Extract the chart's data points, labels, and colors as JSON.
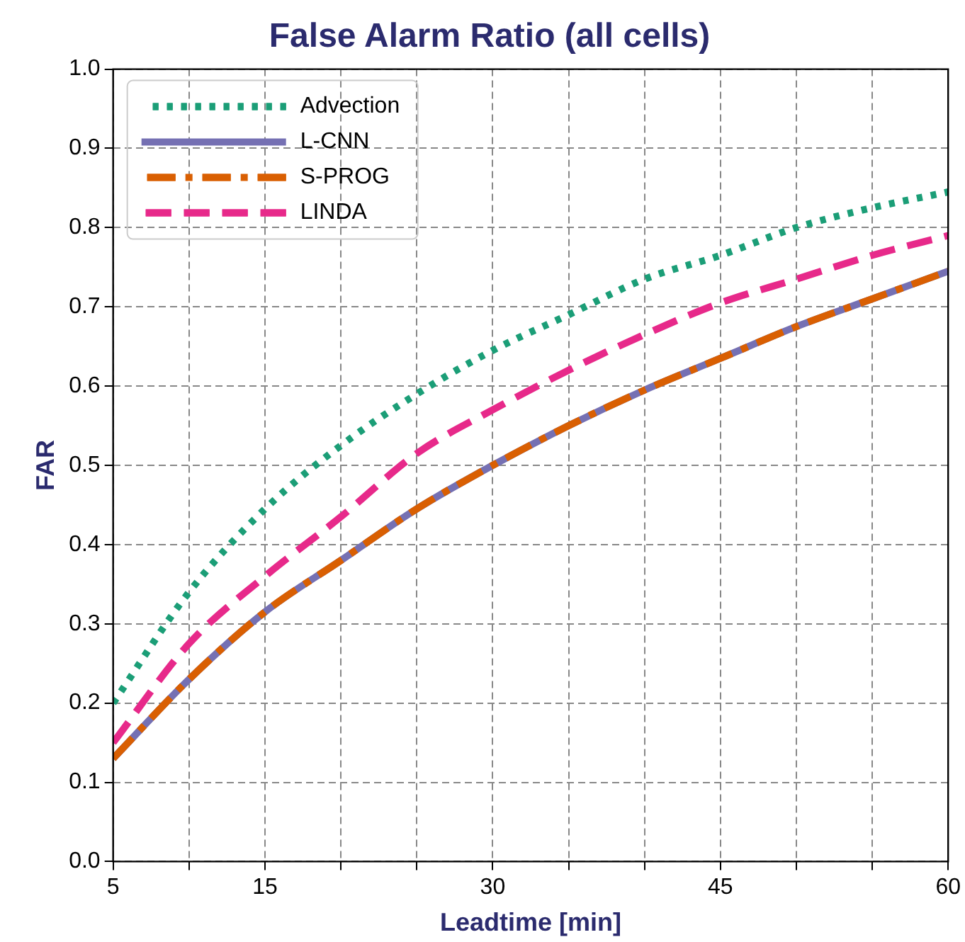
{
  "chart_data": {
    "type": "line",
    "title": "False Alarm Ratio (all cells)",
    "xlabel": "Leadtime [min]",
    "ylabel": "FAR",
    "x": [
      5,
      10,
      15,
      20,
      25,
      30,
      35,
      40,
      45,
      50,
      55,
      60
    ],
    "series": [
      {
        "name": "Advection",
        "color": "#1b9e77",
        "line_style": "dotted",
        "values": [
          0.2,
          0.34,
          0.445,
          0.525,
          0.59,
          0.645,
          0.69,
          0.735,
          0.765,
          0.8,
          0.825,
          0.845
        ]
      },
      {
        "name": "L-CNN",
        "color": "#7570b3",
        "line_style": "solid",
        "values": [
          0.13,
          0.23,
          0.315,
          0.38,
          0.445,
          0.5,
          0.55,
          0.595,
          0.635,
          0.675,
          0.71,
          0.745
        ]
      },
      {
        "name": "S-PROG",
        "color": "#d95f02",
        "line_style": "dashdot",
        "values": [
          0.13,
          0.23,
          0.315,
          0.38,
          0.445,
          0.5,
          0.55,
          0.595,
          0.635,
          0.675,
          0.71,
          0.745
        ]
      },
      {
        "name": "LINDA",
        "color": "#e7298a",
        "line_style": "dashed",
        "values": [
          0.15,
          0.275,
          0.36,
          0.435,
          0.515,
          0.57,
          0.62,
          0.665,
          0.705,
          0.735,
          0.765,
          0.79
        ]
      }
    ],
    "xlim": [
      5,
      60
    ],
    "xticks": [
      5,
      {
        "value": 10,
        "label": null
      },
      15,
      {
        "value": 20,
        "label": null
      },
      {
        "value": 25,
        "label": null
      },
      30,
      {
        "value": 35,
        "label": null
      },
      {
        "value": 40,
        "label": null
      },
      45,
      {
        "value": 50,
        "label": null
      },
      {
        "value": 55,
        "label": null
      },
      60
    ],
    "ylim": [
      0,
      1
    ],
    "yticks": [
      {
        "value": 0,
        "label": "0.0"
      },
      {
        "value": 0.1,
        "label": "0.1"
      },
      {
        "value": 0.2,
        "label": "0.2"
      },
      {
        "value": 0.3,
        "label": "0.3"
      },
      {
        "value": 0.4,
        "label": "0.4"
      },
      {
        "value": 0.5,
        "label": "0.5"
      },
      {
        "value": 0.6,
        "label": "0.6"
      },
      {
        "value": 0.7,
        "label": "0.7"
      },
      {
        "value": 0.8,
        "label": "0.8"
      },
      {
        "value": 0.9,
        "label": "0.9"
      },
      {
        "value": 1,
        "label": "1.0"
      }
    ],
    "grid": true,
    "legend": "top left",
    "marker": "none"
  }
}
